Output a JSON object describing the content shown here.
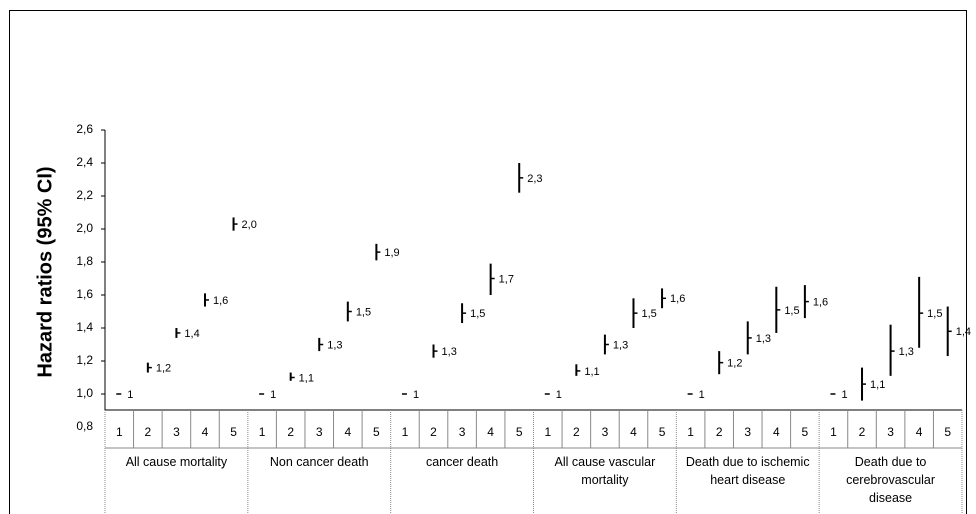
{
  "chart_data": {
    "type": "errorbar",
    "y_label": "Hazard ratios (95% CI)",
    "ylim": [
      0.8,
      2.6
    ],
    "yticks": [
      {
        "value": 0.8,
        "label": "0,8"
      },
      {
        "value": 1.0,
        "label": "1,0"
      },
      {
        "value": 1.2,
        "label": "1,2"
      },
      {
        "value": 1.4,
        "label": "1,4"
      },
      {
        "value": 1.6,
        "label": "1,6"
      },
      {
        "value": 1.8,
        "label": "1,8"
      },
      {
        "value": 2.0,
        "label": "2,0"
      },
      {
        "value": 2.2,
        "label": "2,2"
      },
      {
        "value": 2.4,
        "label": "2,4"
      },
      {
        "value": 2.6,
        "label": "2,6"
      }
    ],
    "categories": [
      "1",
      "2",
      "3",
      "4",
      "5"
    ],
    "color": "#000000",
    "groups": [
      {
        "name": "All cause mortality",
        "values": [
          1,
          1.16,
          1.37,
          1.57,
          2.03
        ],
        "lower": [
          null,
          1.13,
          1.34,
          1.53,
          1.99
        ],
        "upper": [
          null,
          1.19,
          1.4,
          1.61,
          2.07
        ],
        "value_labels": [
          "1",
          "1,2",
          "1,4",
          "1,6",
          "2,0"
        ]
      },
      {
        "name": "Non cancer death",
        "values": [
          1,
          1.1,
          1.3,
          1.5,
          1.86
        ],
        "lower": [
          null,
          1.08,
          1.26,
          1.44,
          1.81
        ],
        "upper": [
          null,
          1.13,
          1.34,
          1.56,
          1.91
        ],
        "value_labels": [
          "1",
          "1,1",
          "1,3",
          "1,5",
          "1,9"
        ]
      },
      {
        "name": "cancer death",
        "values": [
          1,
          1.26,
          1.49,
          1.7,
          2.31
        ],
        "lower": [
          null,
          1.22,
          1.43,
          1.6,
          2.22
        ],
        "upper": [
          null,
          1.3,
          1.55,
          1.79,
          2.4
        ],
        "value_labels": [
          "1",
          "1,3",
          "1,5",
          "1,7",
          "2,3"
        ]
      },
      {
        "name": "All cause vascular mortality",
        "values": [
          1,
          1.14,
          1.3,
          1.49,
          1.58
        ],
        "lower": [
          null,
          1.11,
          1.24,
          1.4,
          1.52
        ],
        "upper": [
          null,
          1.18,
          1.36,
          1.58,
          1.64
        ],
        "value_labels": [
          "1",
          "1,1",
          "1,3",
          "1,5",
          "1,6"
        ]
      },
      {
        "name": "Death due to ischemic heart disease",
        "values": [
          1,
          1.19,
          1.34,
          1.51,
          1.56
        ],
        "lower": [
          null,
          1.12,
          1.24,
          1.37,
          1.46
        ],
        "upper": [
          null,
          1.26,
          1.44,
          1.65,
          1.66
        ],
        "value_labels": [
          "1",
          "1,2",
          "1,3",
          "1,5",
          "1,6"
        ]
      },
      {
        "name": "Death due to cerebrovascular disease",
        "values": [
          1,
          1.06,
          1.26,
          1.49,
          1.38
        ],
        "lower": [
          null,
          0.96,
          1.11,
          1.28,
          1.23
        ],
        "upper": [
          null,
          1.16,
          1.42,
          1.71,
          1.53
        ],
        "value_labels": [
          "1",
          "1,1",
          "1,3",
          "1,5",
          "1,4"
        ]
      }
    ]
  }
}
